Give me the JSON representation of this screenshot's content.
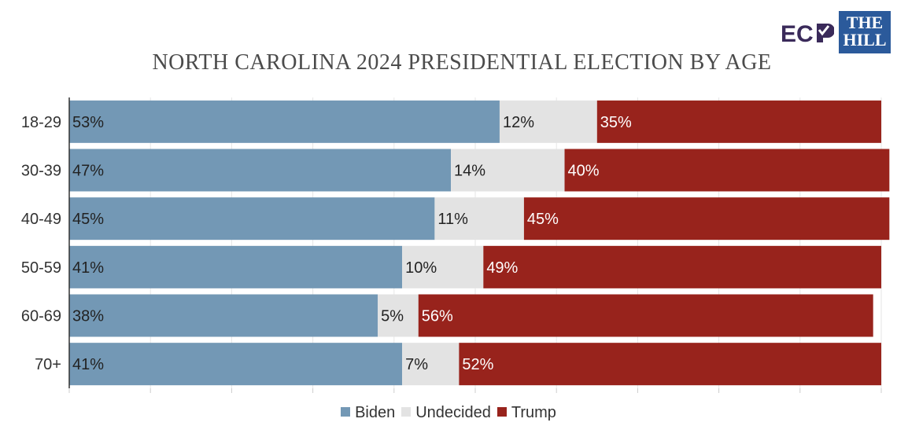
{
  "title": "NORTH CAROLINA 2024 PRESIDENTIAL ELECTION BY AGE",
  "logos": {
    "ecp": "ECP",
    "hill_line1": "THE",
    "hill_line2": "HILL",
    "ecp_color": "#3a2a5a",
    "ecp_accent": "#7a2d8c",
    "hill_color": "#2b5a9b"
  },
  "chart_data": {
    "type": "bar",
    "orientation": "horizontal",
    "stacked": true,
    "categories": [
      "18-29",
      "30-39",
      "40-49",
      "50-59",
      "60-69",
      "70+"
    ],
    "series": [
      {
        "name": "Biden",
        "values": [
          53,
          47,
          45,
          41,
          38,
          41
        ],
        "color": "#7398b5",
        "label_color": "#222222"
      },
      {
        "name": "Undecided",
        "values": [
          12,
          14,
          11,
          10,
          5,
          7
        ],
        "color": "#e3e3e3",
        "label_color": "#222222"
      },
      {
        "name": "Trump",
        "values": [
          35,
          40,
          45,
          49,
          56,
          52
        ],
        "color": "#98231c",
        "label_color": "#ffffff"
      }
    ],
    "value_suffix": "%",
    "xlim": [
      0,
      100
    ],
    "grid": true,
    "legend_position": "bottom"
  }
}
